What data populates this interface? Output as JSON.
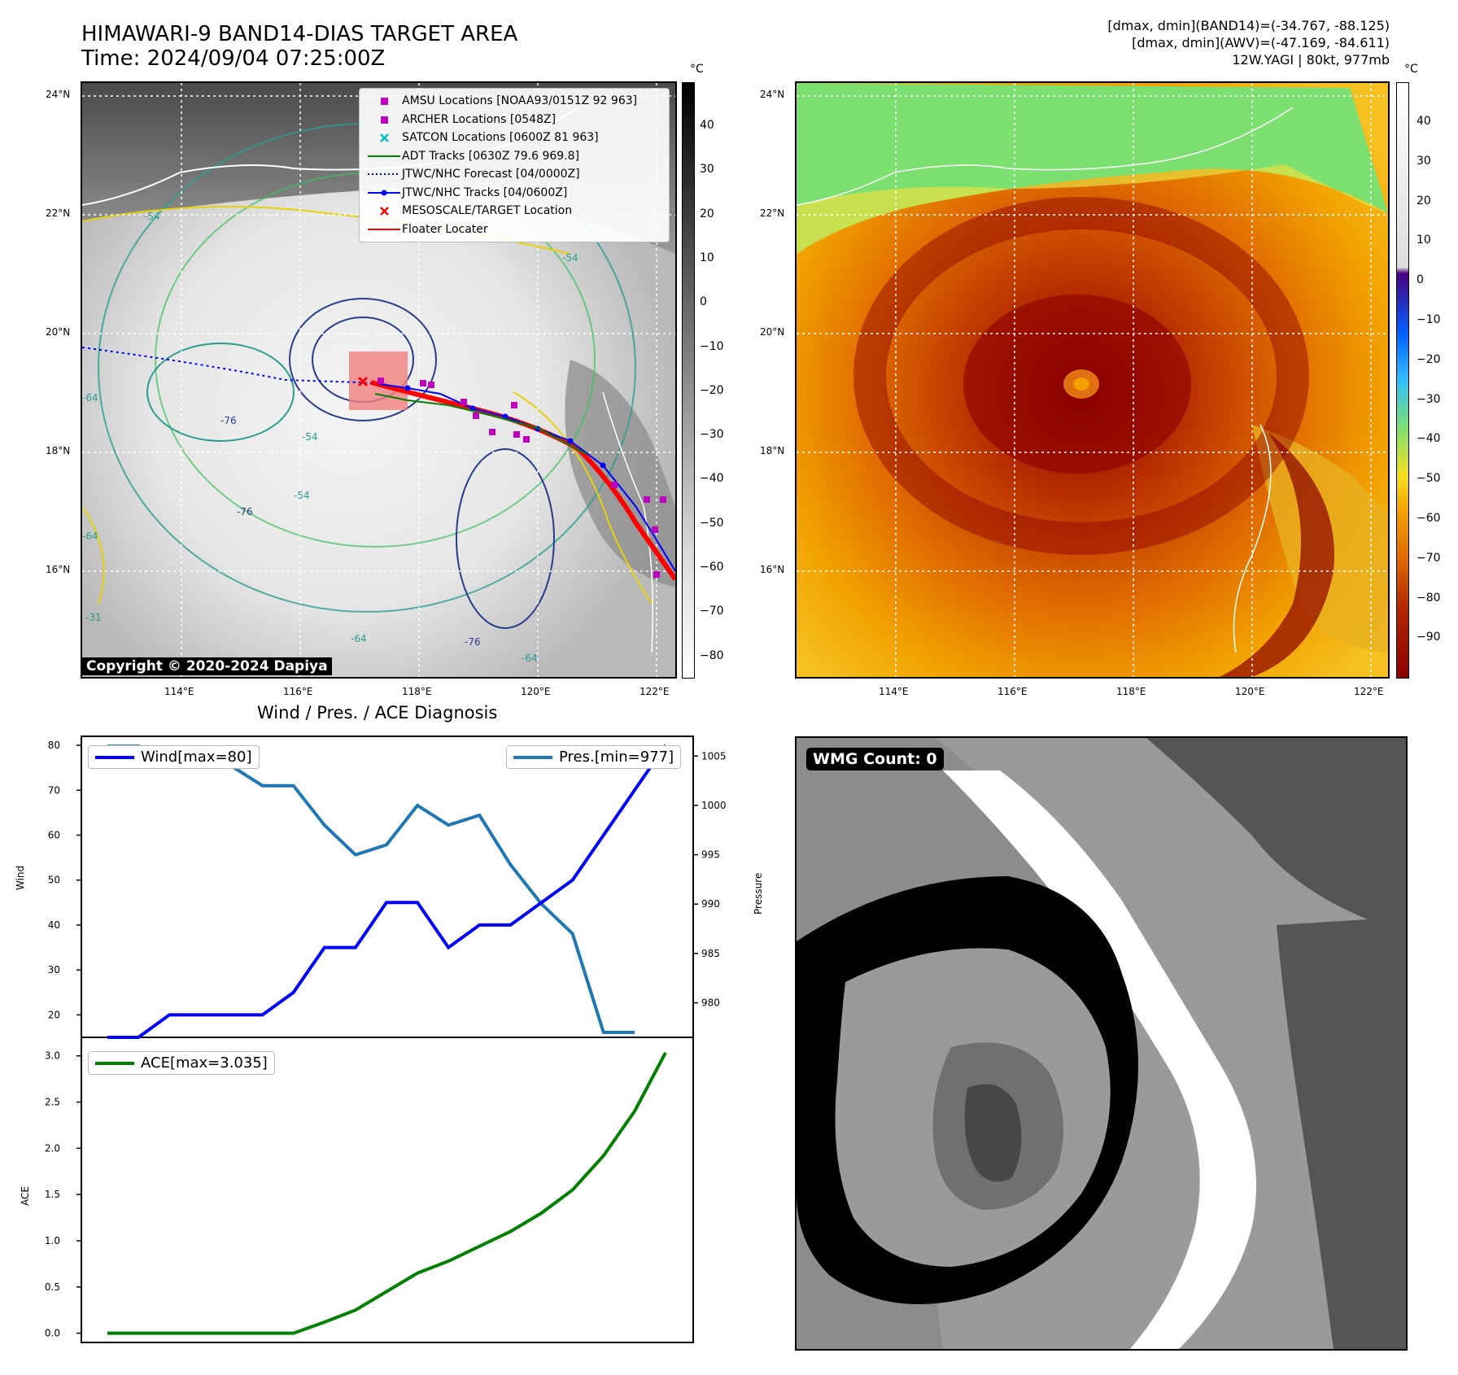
{
  "map_panel": {
    "title_line1": "HIMAWARI-9 BAND14-DIAS TARGET AREA",
    "title_line2": "Time: 2024/09/04 07:25:00Z",
    "copyright": "Copyright © 2020-2024 Dapiya",
    "lat_labels": [
      "24°N",
      "22°N",
      "20°N",
      "18°N",
      "16°N"
    ],
    "lon_labels": [
      "114°E",
      "116°E",
      "118°E",
      "120°E",
      "122°E"
    ],
    "colorbar_unit": "°C",
    "colorbar_ticks": [
      "40",
      "30",
      "20",
      "10",
      "0",
      "−10",
      "−20",
      "−30",
      "−40",
      "−50",
      "−60",
      "−70",
      "−80"
    ],
    "contour_labels": [
      "-54",
      "-54",
      "-64",
      "-76",
      "-54",
      "-64",
      "-76",
      "-54",
      "-64",
      "-31",
      "-76",
      "-64"
    ],
    "legend": [
      {
        "label": "AMSU Locations [NOAA93/0151Z 92 963]",
        "symbol": "square",
        "color": "#bf00bf"
      },
      {
        "label": "ARCHER Locations [0548Z]",
        "symbol": "square",
        "color": "#bf00bf"
      },
      {
        "label": "SATCON Locations [0600Z 81 963]",
        "symbol": "x",
        "color": "#00bfbf"
      },
      {
        "label": "ADT Tracks [0630Z 79.6 969.8]",
        "symbol": "line",
        "color": "#008000"
      },
      {
        "label": "JTWC/NHC Forecast [04/0000Z]",
        "symbol": "dotted",
        "color": "#0000ff"
      },
      {
        "label": "JTWC/NHC Tracks [04/0600Z]",
        "symbol": "line-dot",
        "color": "#0000ff"
      },
      {
        "label": "MESOSCALE/TARGET Location",
        "symbol": "x",
        "color": "#ff0000"
      },
      {
        "label": "Floater Locater",
        "symbol": "line",
        "color": "#ff0000"
      }
    ]
  },
  "awv_panel": {
    "header_line1": "[dmax, dmin](BAND14)=(-34.767, -88.125)",
    "header_line2": "[dmax, dmin](AWV)=(-47.169, -84.611)",
    "header_line3": "12W.YAGI | 80kt, 977mb",
    "lat_labels": [
      "24°N",
      "22°N",
      "20°N",
      "18°N",
      "16°N"
    ],
    "lon_labels": [
      "114°E",
      "116°E",
      "118°E",
      "120°E",
      "122°E"
    ],
    "colorbar_unit": "°C",
    "colorbar_ticks": [
      "40",
      "30",
      "20",
      "10",
      "0",
      "−10",
      "−20",
      "−30",
      "−40",
      "−50",
      "−60",
      "−70",
      "−80",
      "−90"
    ]
  },
  "diagnosis_panel": {
    "title": "Wind / Pres. / ACE Diagnosis",
    "wind_ylabel": "Wind",
    "pres_ylabel": "Pressure",
    "ace_ylabel": "ACE",
    "wind_legend": "Wind[max=80]",
    "pres_legend": "Pres.[min=977]",
    "ace_legend": "ACE[max=3.035]"
  },
  "wmg_panel": {
    "label": "WMG Count: 0"
  },
  "colors": {
    "wind": "#0000ff",
    "pressure": "#1f77b4",
    "ace": "#008000",
    "floater": "#ff0000",
    "target_box": "#f08080"
  },
  "chart_data": [
    {
      "type": "line",
      "x": [
        0,
        1,
        2,
        3,
        4,
        5,
        6,
        7,
        8,
        9,
        10,
        11,
        12,
        13,
        14,
        15,
        16,
        17,
        18
      ],
      "ylim": [
        15,
        82
      ],
      "yticks": [
        20,
        30,
        40,
        50,
        60,
        70,
        80
      ],
      "series": [
        {
          "name": "Wind[max=80]",
          "values": [
            15,
            15,
            20,
            20,
            20,
            20,
            25,
            35,
            35,
            45,
            45,
            35,
            40,
            40,
            45,
            50,
            60,
            70,
            80
          ]
        }
      ]
    },
    {
      "type": "line",
      "x": [
        0,
        1,
        2,
        3,
        4,
        5,
        6,
        7,
        8,
        9,
        10,
        11,
        12,
        13,
        14,
        15,
        16,
        17,
        18
      ],
      "ylim": [
        976.5,
        1007
      ],
      "yticks": [
        980,
        985,
        990,
        995,
        1000,
        1005
      ],
      "series": [
        {
          "name": "Pres.[min=977]",
          "values": [
            1006,
            1006,
            1005,
            1005,
            1004,
            1002,
            1002,
            998,
            995,
            996,
            1000,
            998,
            999,
            994,
            990,
            987,
            977,
            977,
            null
          ]
        }
      ]
    },
    {
      "type": "line",
      "x": [
        0,
        1,
        2,
        3,
        4,
        5,
        6,
        7,
        8,
        9,
        10,
        11,
        12,
        13,
        14,
        15,
        16,
        17,
        18
      ],
      "ylim": [
        -0.1,
        3.2
      ],
      "yticks": [
        0.0,
        0.5,
        1.0,
        1.5,
        2.0,
        2.5,
        3.0
      ],
      "ytick_labels": [
        "0.0",
        "0.5",
        "1.0",
        "1.5",
        "2.0",
        "2.5",
        "3.0"
      ],
      "series": [
        {
          "name": "ACE[max=3.035]",
          "values": [
            0,
            0,
            0,
            0,
            0,
            0,
            0,
            0.12,
            0.25,
            0.45,
            0.65,
            0.78,
            0.94,
            1.1,
            1.3,
            1.55,
            1.92,
            2.4,
            3.035
          ]
        }
      ]
    }
  ]
}
